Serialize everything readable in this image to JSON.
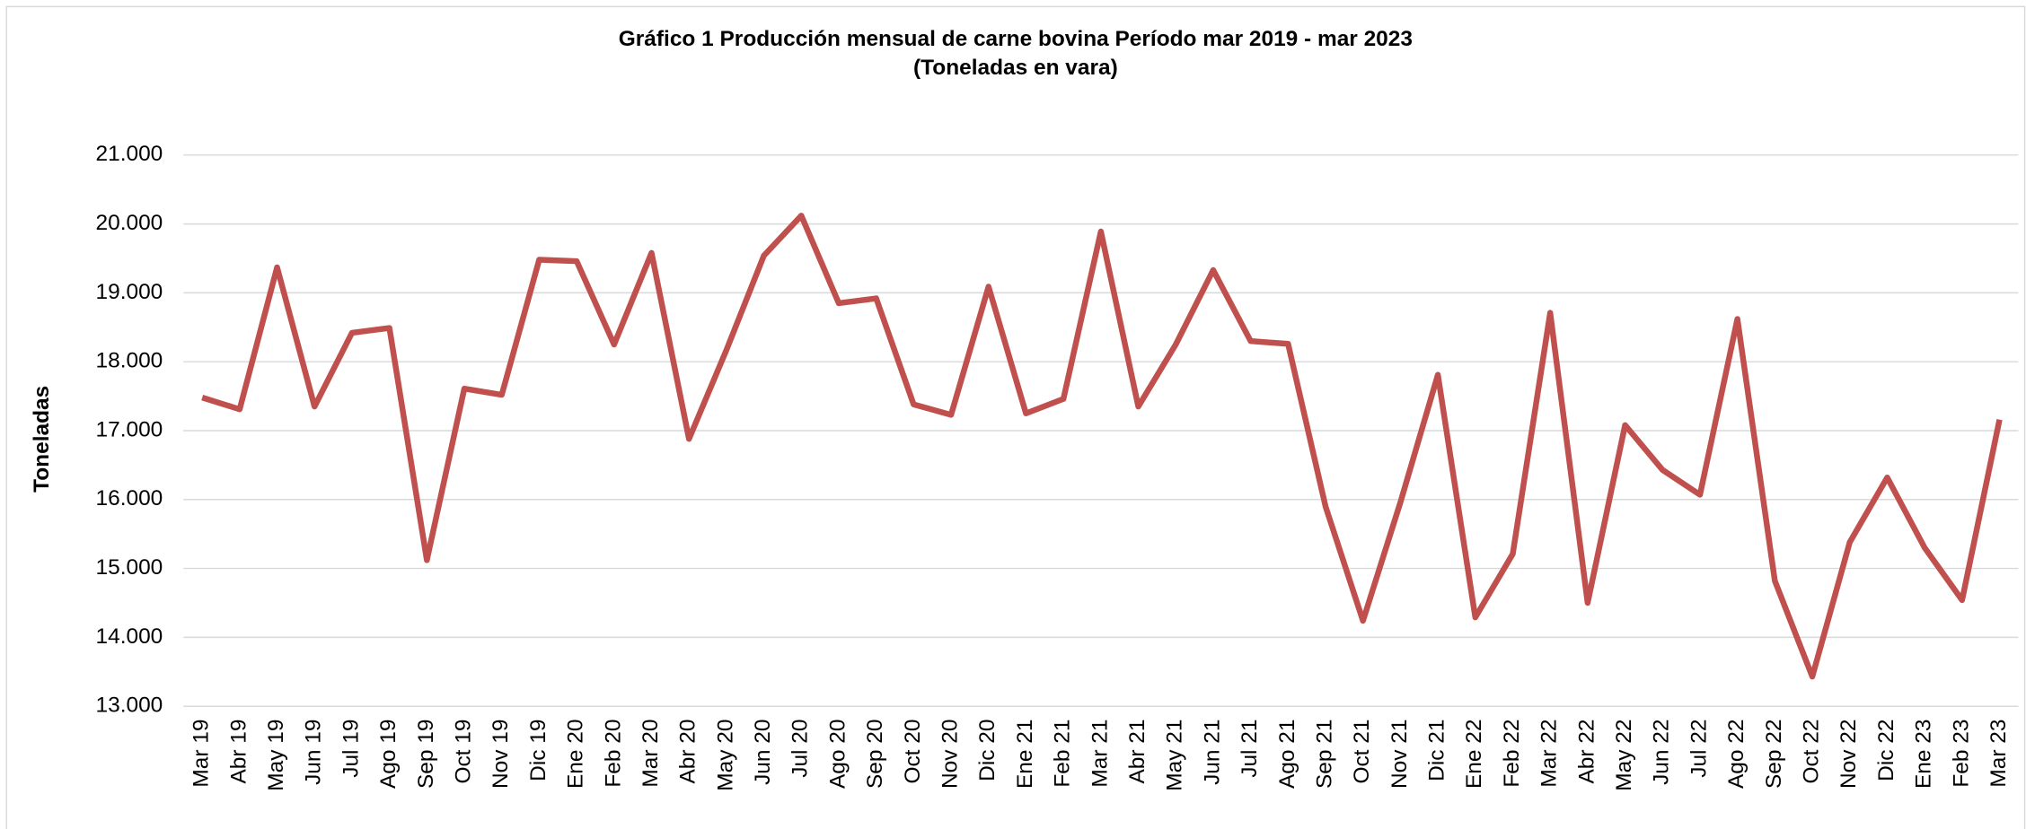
{
  "chart_data": {
    "type": "line",
    "title": "Gráfico 1 Producción mensual de carne bovina Período mar 2019 - mar 2023",
    "subtitle": "(Toneladas en vara)",
    "y_label": "Toneladas",
    "categories": [
      "Mar 19",
      "Abr 19",
      "May 19",
      "Jun 19",
      "Jul 19",
      "Ago 19",
      "Sep 19",
      "Oct 19",
      "Nov 19",
      "Dic 19",
      "Ene 20",
      "Feb 20",
      "Mar 20",
      "Abr 20",
      "May 20",
      "Jun 20",
      "Jul 20",
      "Ago 20",
      "Sep 20",
      "Oct 20",
      "Nov 20",
      "Dic 20",
      "Ene 21",
      "Feb 21",
      "Mar 21",
      "Abr 21",
      "May 21",
      "Jun 21",
      "Jul 21",
      "Ago 21",
      "Sep 21",
      "Oct 21",
      "Nov 21",
      "Dic 21",
      "Ene 22",
      "Feb 22",
      "Mar 22",
      "Abr 22",
      "May 22",
      "Jun 22",
      "Jul 22",
      "Ago 22",
      "Sep 22",
      "Oct 22",
      "Nov 22",
      "Dic 22",
      "Ene 23",
      "Feb 23",
      "Mar 23"
    ],
    "series": [
      {
        "color": "#c0504d",
        "values": [
          17480,
          17310,
          19370,
          17350,
          18420,
          18490,
          15120,
          17610,
          17520,
          19480,
          19460,
          18250,
          19580,
          16880,
          18170,
          19540,
          20120,
          18850,
          18920,
          17380,
          17230,
          19090,
          17250,
          17460,
          19890,
          17350,
          18250,
          19330,
          18300,
          18260,
          15900,
          14240,
          15960,
          17810,
          14290,
          15210,
          18710,
          14500,
          17080,
          16430,
          16070,
          18620,
          14820,
          13430,
          15380,
          16320,
          15300,
          14540,
          17160
        ]
      }
    ],
    "ylim": [
      13000,
      21000
    ],
    "yticks": [
      {
        "value": 13000,
        "label": "13.000"
      },
      {
        "value": 14000,
        "label": "14.000"
      },
      {
        "value": 15000,
        "label": "15.000"
      },
      {
        "value": 16000,
        "label": "16.000"
      },
      {
        "value": 17000,
        "label": "17.000"
      },
      {
        "value": 18000,
        "label": "18.000"
      },
      {
        "value": 19000,
        "label": "19.000"
      },
      {
        "value": 20000,
        "label": "20.000"
      },
      {
        "value": 21000,
        "label": "21.000"
      }
    ],
    "grid": true
  }
}
